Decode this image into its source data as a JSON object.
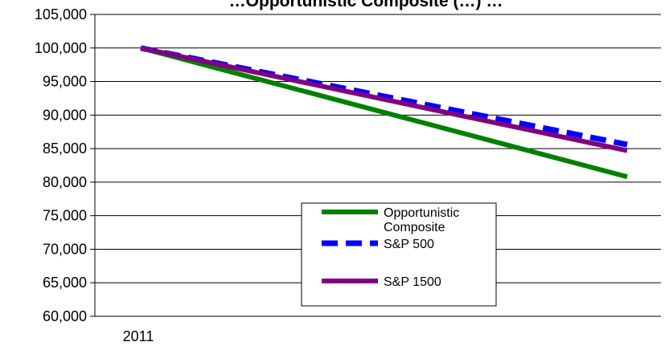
{
  "chart_data": {
    "type": "line",
    "title": "…Opportunistic Composite (…) …",
    "xlabel": "",
    "ylabel": "",
    "ylim": [
      60000,
      105000
    ],
    "y_ticks": [
      "105,000",
      "100,000",
      "95,000",
      "90,000",
      "85,000",
      "80,000",
      "75,000",
      "70,000",
      "65,000",
      "60,000"
    ],
    "x_ticks": [
      "2011"
    ],
    "grid": true,
    "legend_position": "bottom-center",
    "series": [
      {
        "name": "Opportunistic Composite",
        "color": "#008000",
        "style": "solid",
        "x": [
          0,
          1
        ],
        "values": [
          100000,
          80800
        ]
      },
      {
        "name": "S&P 500",
        "color": "#0000ff",
        "style": "dashed",
        "x": [
          0,
          1
        ],
        "values": [
          100000,
          85600
        ]
      },
      {
        "name": "S&P 1500",
        "color": "#800080",
        "style": "solid",
        "x": [
          0,
          1
        ],
        "values": [
          100000,
          84700
        ]
      }
    ]
  }
}
